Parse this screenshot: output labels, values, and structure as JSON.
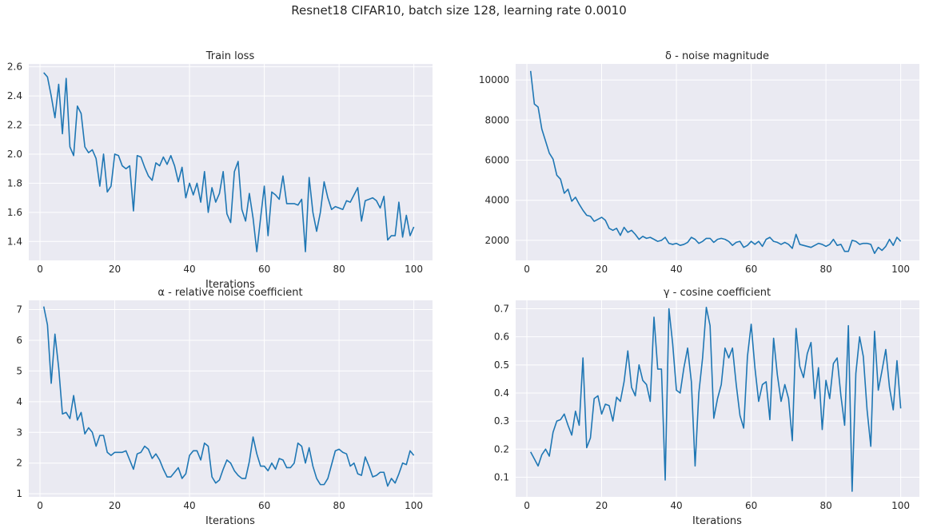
{
  "figure": {
    "suptitle": "Resnet18 CIFAR10, batch size 128, learning rate 0.0010",
    "line_color": "#1f77b4",
    "panel_color": "#eaeaf2"
  },
  "chart_data": [
    {
      "type": "line",
      "title": "Train loss",
      "xlabel": "Iterations",
      "ylabel": "",
      "xlim": [
        -3,
        105
      ],
      "ylim": [
        1.27,
        2.62
      ],
      "xticks": [
        0,
        20,
        40,
        60,
        80,
        100
      ],
      "xtick_labels": [
        "0",
        "20",
        "40",
        "60",
        "80",
        "100"
      ],
      "yticks": [
        1.4,
        1.6,
        1.8,
        2.0,
        2.2,
        2.4,
        2.6
      ],
      "ytick_labels": [
        "1.4",
        "1.6",
        "1.8",
        "2.0",
        "2.2",
        "2.4",
        "2.6"
      ],
      "series": [
        {
          "name": "Train loss",
          "values": [
            2.56,
            2.53,
            2.4,
            2.25,
            2.48,
            2.14,
            2.52,
            2.05,
            1.99,
            2.33,
            2.28,
            2.05,
            2.01,
            2.03,
            1.97,
            1.78,
            2.0,
            1.74,
            1.78,
            2.0,
            1.99,
            1.92,
            1.9,
            1.92,
            1.61,
            1.99,
            1.98,
            1.91,
            1.85,
            1.82,
            1.94,
            1.92,
            1.98,
            1.93,
            1.99,
            1.92,
            1.81,
            1.91,
            1.7,
            1.8,
            1.72,
            1.8,
            1.67,
            1.88,
            1.6,
            1.77,
            1.67,
            1.73,
            1.88,
            1.59,
            1.53,
            1.88,
            1.95,
            1.62,
            1.54,
            1.73,
            1.56,
            1.33,
            1.56,
            1.78,
            1.44,
            1.74,
            1.72,
            1.69,
            1.85,
            1.66,
            1.66,
            1.66,
            1.65,
            1.69,
            1.33,
            1.84,
            1.6,
            1.47,
            1.6,
            1.81,
            1.7,
            1.62,
            1.64,
            1.63,
            1.62,
            1.68,
            1.67,
            1.72,
            1.77,
            1.54,
            1.68,
            1.69,
            1.7,
            1.68,
            1.63,
            1.71,
            1.41,
            1.44,
            1.44,
            1.67,
            1.43,
            1.58,
            1.44,
            1.5
          ]
        }
      ]
    },
    {
      "type": "line",
      "title": "δ - noise magnitude",
      "xlabel": "",
      "ylabel": "",
      "xlim": [
        -3,
        105
      ],
      "ylim": [
        1000,
        10800
      ],
      "xticks": [
        0,
        20,
        40,
        60,
        80,
        100
      ],
      "xtick_labels": [
        "0",
        "20",
        "40",
        "60",
        "80",
        "100"
      ],
      "yticks": [
        2000,
        4000,
        6000,
        8000,
        10000
      ],
      "ytick_labels": [
        "2000",
        "4000",
        "6000",
        "8000",
        "10000"
      ],
      "series": [
        {
          "name": "delta",
          "values": [
            10450,
            8800,
            8650,
            7550,
            6950,
            6350,
            6050,
            5250,
            5050,
            4350,
            4550,
            3950,
            4150,
            3800,
            3500,
            3250,
            3200,
            2950,
            3050,
            3150,
            3000,
            2600,
            2500,
            2600,
            2250,
            2650,
            2400,
            2500,
            2300,
            2050,
            2200,
            2100,
            2150,
            2050,
            1950,
            2000,
            2150,
            1850,
            1800,
            1850,
            1750,
            1800,
            1900,
            2150,
            2050,
            1850,
            1950,
            2100,
            2100,
            1900,
            2050,
            2100,
            2050,
            1950,
            1750,
            1900,
            1950,
            1650,
            1750,
            1950,
            1800,
            1950,
            1700,
            2050,
            2150,
            1950,
            1900,
            1800,
            1900,
            1800,
            1600,
            2300,
            1800,
            1750,
            1700,
            1650,
            1750,
            1850,
            1800,
            1700,
            1800,
            2050,
            1750,
            1800,
            1450,
            1450,
            2000,
            1950,
            1800,
            1850,
            1850,
            1800,
            1350,
            1650,
            1500,
            1700,
            2050,
            1750,
            2150,
            1950
          ]
        }
      ]
    },
    {
      "type": "line",
      "title": "α - relative noise coefficient",
      "xlabel": "Iterations",
      "ylabel": "",
      "xlim": [
        -3,
        105
      ],
      "ylim": [
        0.9,
        7.3
      ],
      "xticks": [
        0,
        20,
        40,
        60,
        80,
        100
      ],
      "xtick_labels": [
        "0",
        "20",
        "40",
        "60",
        "80",
        "100"
      ],
      "yticks": [
        1,
        2,
        3,
        4,
        5,
        6,
        7
      ],
      "ytick_labels": [
        "1",
        "2",
        "3",
        "4",
        "5",
        "6",
        "7"
      ],
      "series": [
        {
          "name": "alpha",
          "values": [
            7.1,
            6.5,
            4.6,
            6.2,
            5.1,
            3.6,
            3.65,
            3.45,
            4.2,
            3.4,
            3.65,
            2.95,
            3.15,
            3.0,
            2.55,
            2.9,
            2.9,
            2.35,
            2.25,
            2.35,
            2.35,
            2.35,
            2.4,
            2.1,
            1.8,
            2.3,
            2.35,
            2.55,
            2.45,
            2.15,
            2.3,
            2.1,
            1.8,
            1.55,
            1.55,
            1.7,
            1.85,
            1.5,
            1.65,
            2.25,
            2.4,
            2.4,
            2.1,
            2.65,
            2.55,
            1.55,
            1.35,
            1.45,
            1.8,
            2.1,
            2.0,
            1.75,
            1.6,
            1.5,
            1.5,
            2.05,
            2.85,
            2.3,
            1.9,
            1.9,
            1.75,
            2.0,
            1.8,
            2.15,
            2.1,
            1.85,
            1.85,
            2.0,
            2.65,
            2.55,
            2.0,
            2.5,
            1.9,
            1.5,
            1.3,
            1.3,
            1.5,
            1.95,
            2.4,
            2.45,
            2.35,
            2.3,
            1.9,
            2.0,
            1.65,
            1.6,
            2.2,
            1.9,
            1.55,
            1.6,
            1.7,
            1.7,
            1.25,
            1.5,
            1.35,
            1.65,
            2.0,
            1.95,
            2.4,
            2.25
          ]
        }
      ]
    },
    {
      "type": "line",
      "title": "γ - cosine coefficient",
      "xlabel": "Iterations",
      "ylabel": "",
      "xlim": [
        -3,
        105
      ],
      "ylim": [
        0.03,
        0.73
      ],
      "xticks": [
        0,
        20,
        40,
        60,
        80,
        100
      ],
      "xtick_labels": [
        "0",
        "20",
        "40",
        "60",
        "80",
        "100"
      ],
      "yticks": [
        0.1,
        0.2,
        0.3,
        0.4,
        0.5,
        0.6,
        0.7
      ],
      "ytick_labels": [
        "0.1",
        "0.2",
        "0.3",
        "0.4",
        "0.5",
        "0.6",
        "0.7"
      ],
      "series": [
        {
          "name": "gamma",
          "values": [
            0.19,
            0.165,
            0.14,
            0.18,
            0.2,
            0.175,
            0.26,
            0.3,
            0.305,
            0.325,
            0.285,
            0.25,
            0.335,
            0.285,
            0.525,
            0.205,
            0.24,
            0.38,
            0.39,
            0.325,
            0.36,
            0.355,
            0.3,
            0.385,
            0.37,
            0.44,
            0.55,
            0.42,
            0.39,
            0.5,
            0.445,
            0.43,
            0.37,
            0.67,
            0.485,
            0.485,
            0.09,
            0.7,
            0.575,
            0.41,
            0.4,
            0.49,
            0.56,
            0.44,
            0.14,
            0.4,
            0.525,
            0.705,
            0.64,
            0.31,
            0.38,
            0.43,
            0.56,
            0.525,
            0.56,
            0.43,
            0.32,
            0.275,
            0.53,
            0.645,
            0.49,
            0.37,
            0.43,
            0.44,
            0.305,
            0.595,
            0.465,
            0.37,
            0.43,
            0.38,
            0.23,
            0.63,
            0.495,
            0.455,
            0.54,
            0.58,
            0.38,
            0.49,
            0.27,
            0.445,
            0.38,
            0.505,
            0.525,
            0.39,
            0.285,
            0.64,
            0.05,
            0.47,
            0.6,
            0.53,
            0.34,
            0.21,
            0.62,
            0.41,
            0.48,
            0.555,
            0.42,
            0.34,
            0.515,
            0.345
          ]
        }
      ]
    }
  ]
}
